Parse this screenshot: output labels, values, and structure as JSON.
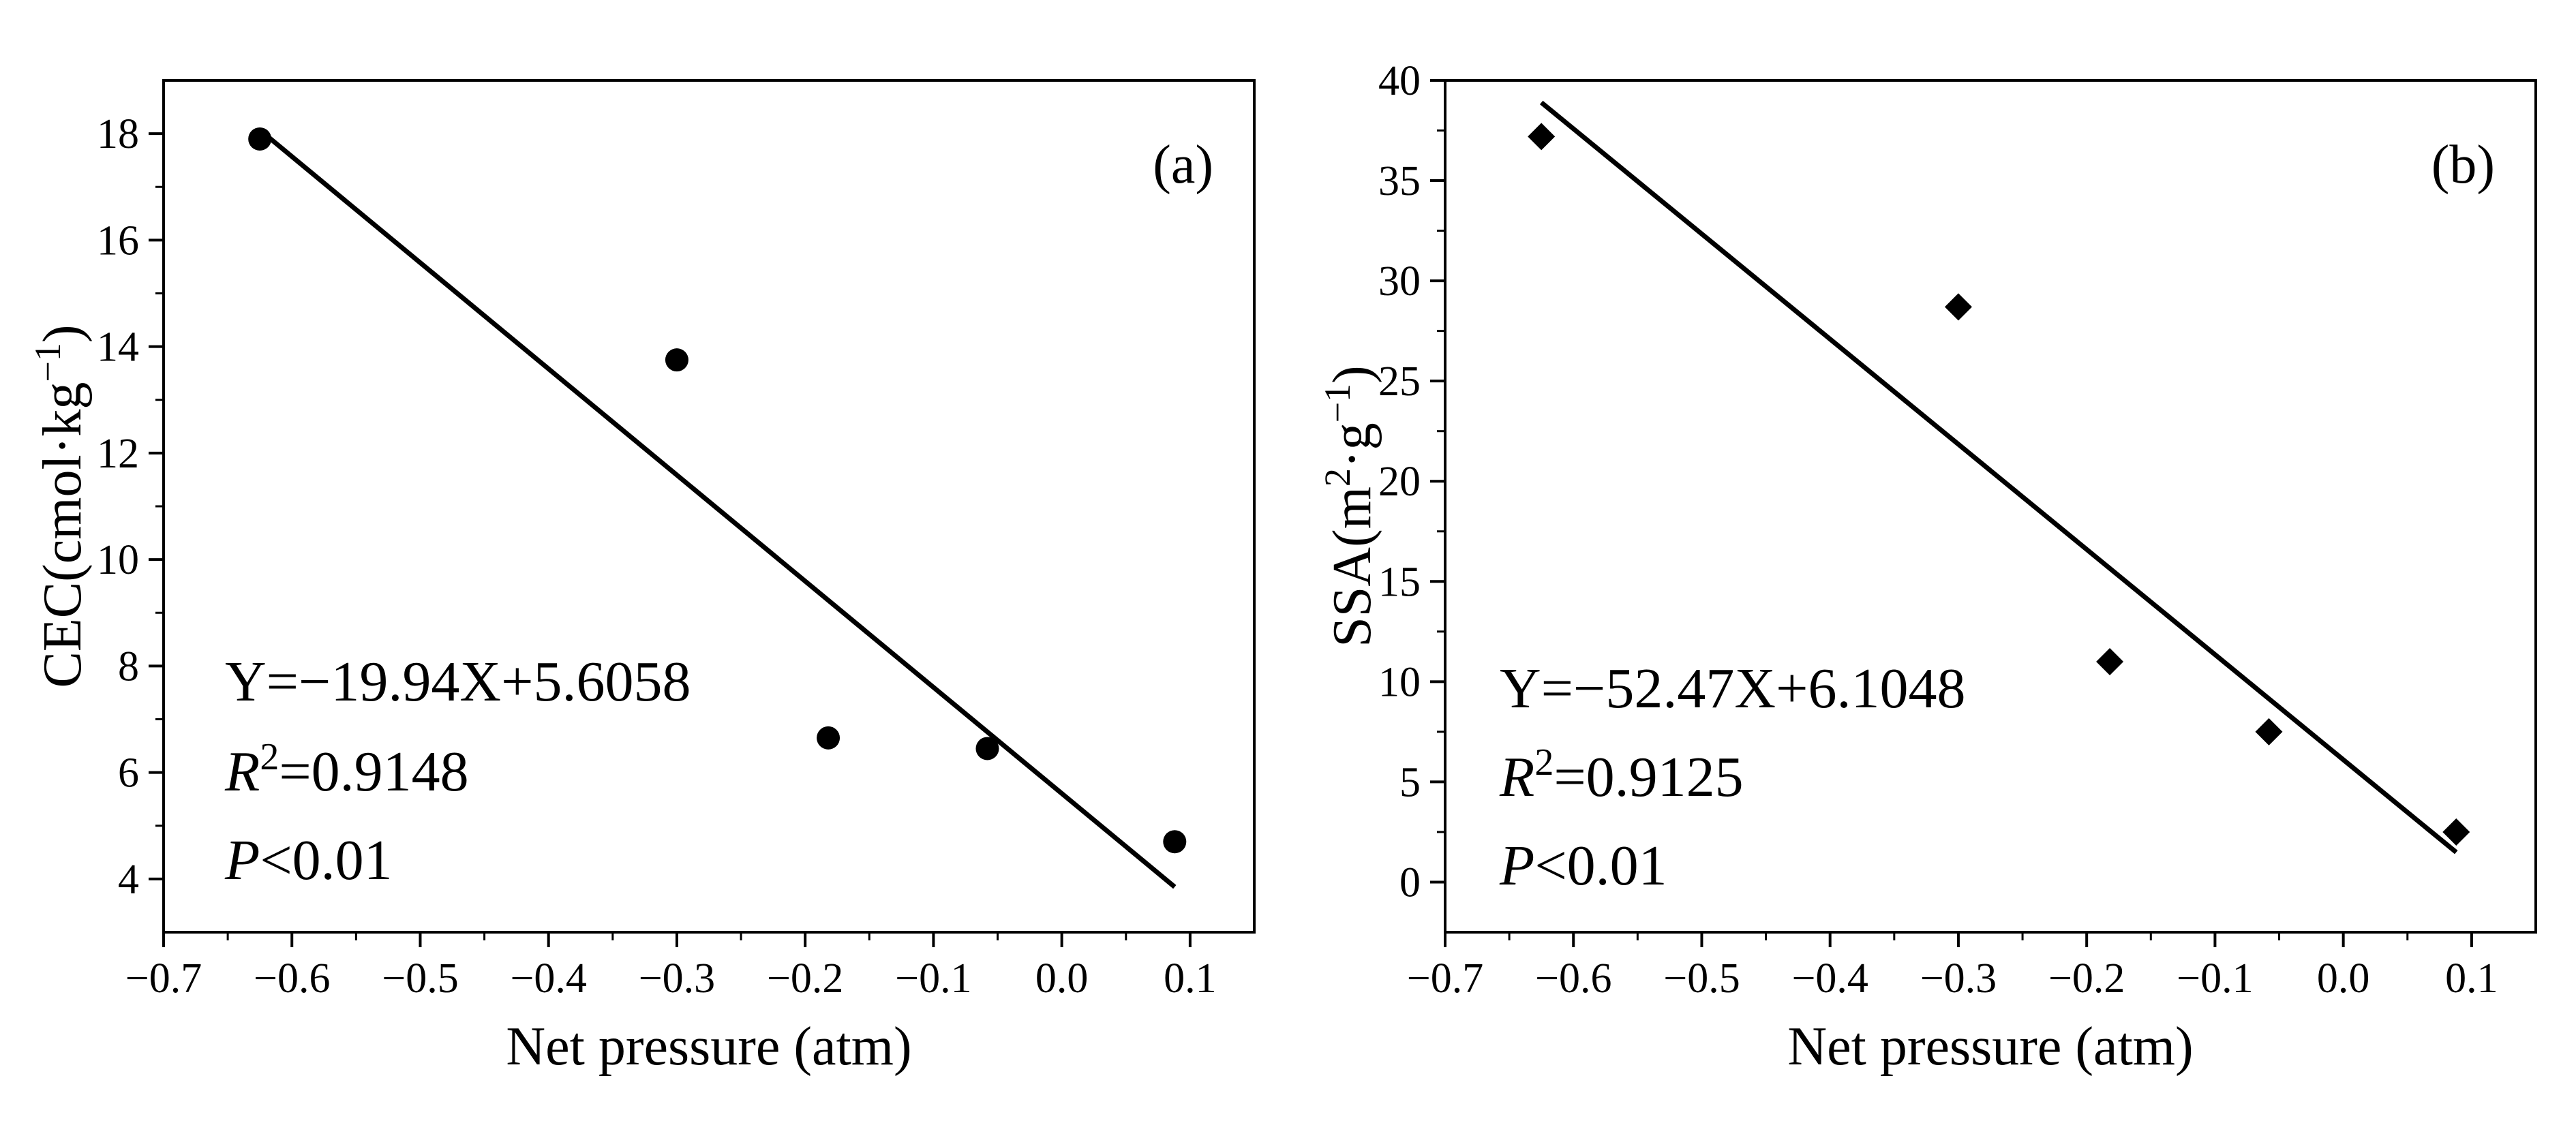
{
  "chart_data": [
    {
      "type": "scatter",
      "panel_label": "(a)",
      "xlabel": "Net pressure (atm)",
      "ylabel": "CEC(cmol·kg",
      "ylabel_sup": "−1",
      "ylabel_close": ")",
      "xlim": [
        -0.7,
        0.15
      ],
      "ylim": [
        3,
        19
      ],
      "xticks": [
        -0.7,
        -0.6,
        -0.5,
        -0.4,
        -0.3,
        -0.2,
        -0.1,
        0.0,
        0.1
      ],
      "xtick_labels": [
        "−0.7",
        "−0.6",
        "−0.5",
        "−0.4",
        "−0.3",
        "−0.2",
        "−0.1",
        "0.0",
        "0.1"
      ],
      "yticks": [
        4,
        6,
        8,
        10,
        12,
        14,
        16,
        18
      ],
      "ytick_labels": [
        "4",
        "6",
        "8",
        "10",
        "12",
        "14",
        "16",
        "18"
      ],
      "marker": "circle",
      "points": [
        {
          "x": -0.625,
          "y": 17.9
        },
        {
          "x": -0.3,
          "y": 13.75
        },
        {
          "x": -0.182,
          "y": 6.65
        },
        {
          "x": -0.058,
          "y": 6.45
        },
        {
          "x": 0.088,
          "y": 4.7
        }
      ],
      "fit": {
        "slope": -19.94,
        "intercept": 5.6058,
        "x_range": [
          -0.625,
          0.088
        ]
      },
      "equation": "Y=−19.94X+5.6058",
      "r2_value": "=0.9148",
      "p_value": "<0.01",
      "grid": false
    },
    {
      "type": "scatter",
      "panel_label": "(b)",
      "xlabel": "Net pressure (atm)",
      "ylabel": "SSA(m",
      "ylabel_sup1": "2",
      "ylabel_mid": "·g",
      "ylabel_sup2": "−1",
      "ylabel_close": ")",
      "xlim": [
        -0.7,
        0.15
      ],
      "ylim": [
        -2.5,
        40
      ],
      "xticks": [
        -0.7,
        -0.6,
        -0.5,
        -0.4,
        -0.3,
        -0.2,
        -0.1,
        0.0,
        0.1
      ],
      "xtick_labels": [
        "−0.7",
        "−0.6",
        "−0.5",
        "−0.4",
        "−0.3",
        "−0.2",
        "−0.1",
        "0.0",
        "0.1"
      ],
      "yticks": [
        0,
        5,
        10,
        15,
        20,
        25,
        30,
        35,
        40
      ],
      "ytick_labels": [
        "0",
        "5",
        "10",
        "15",
        "20",
        "25",
        "30",
        "35",
        "40"
      ],
      "marker": "diamond",
      "points": [
        {
          "x": -0.625,
          "y": 37.2
        },
        {
          "x": -0.3,
          "y": 28.7
        },
        {
          "x": -0.182,
          "y": 11.0
        },
        {
          "x": -0.058,
          "y": 7.5
        },
        {
          "x": 0.088,
          "y": 2.5
        }
      ],
      "fit": {
        "slope": -52.47,
        "intercept": 6.1048,
        "x_range": [
          -0.625,
          0.088
        ]
      },
      "equation": "Y=−52.47X+6.1048",
      "r2_value": "=0.9125",
      "p_value": "<0.01",
      "grid": false
    }
  ],
  "labels": {
    "r_letter": "R",
    "r_sup": "2",
    "p_letter": "P"
  }
}
